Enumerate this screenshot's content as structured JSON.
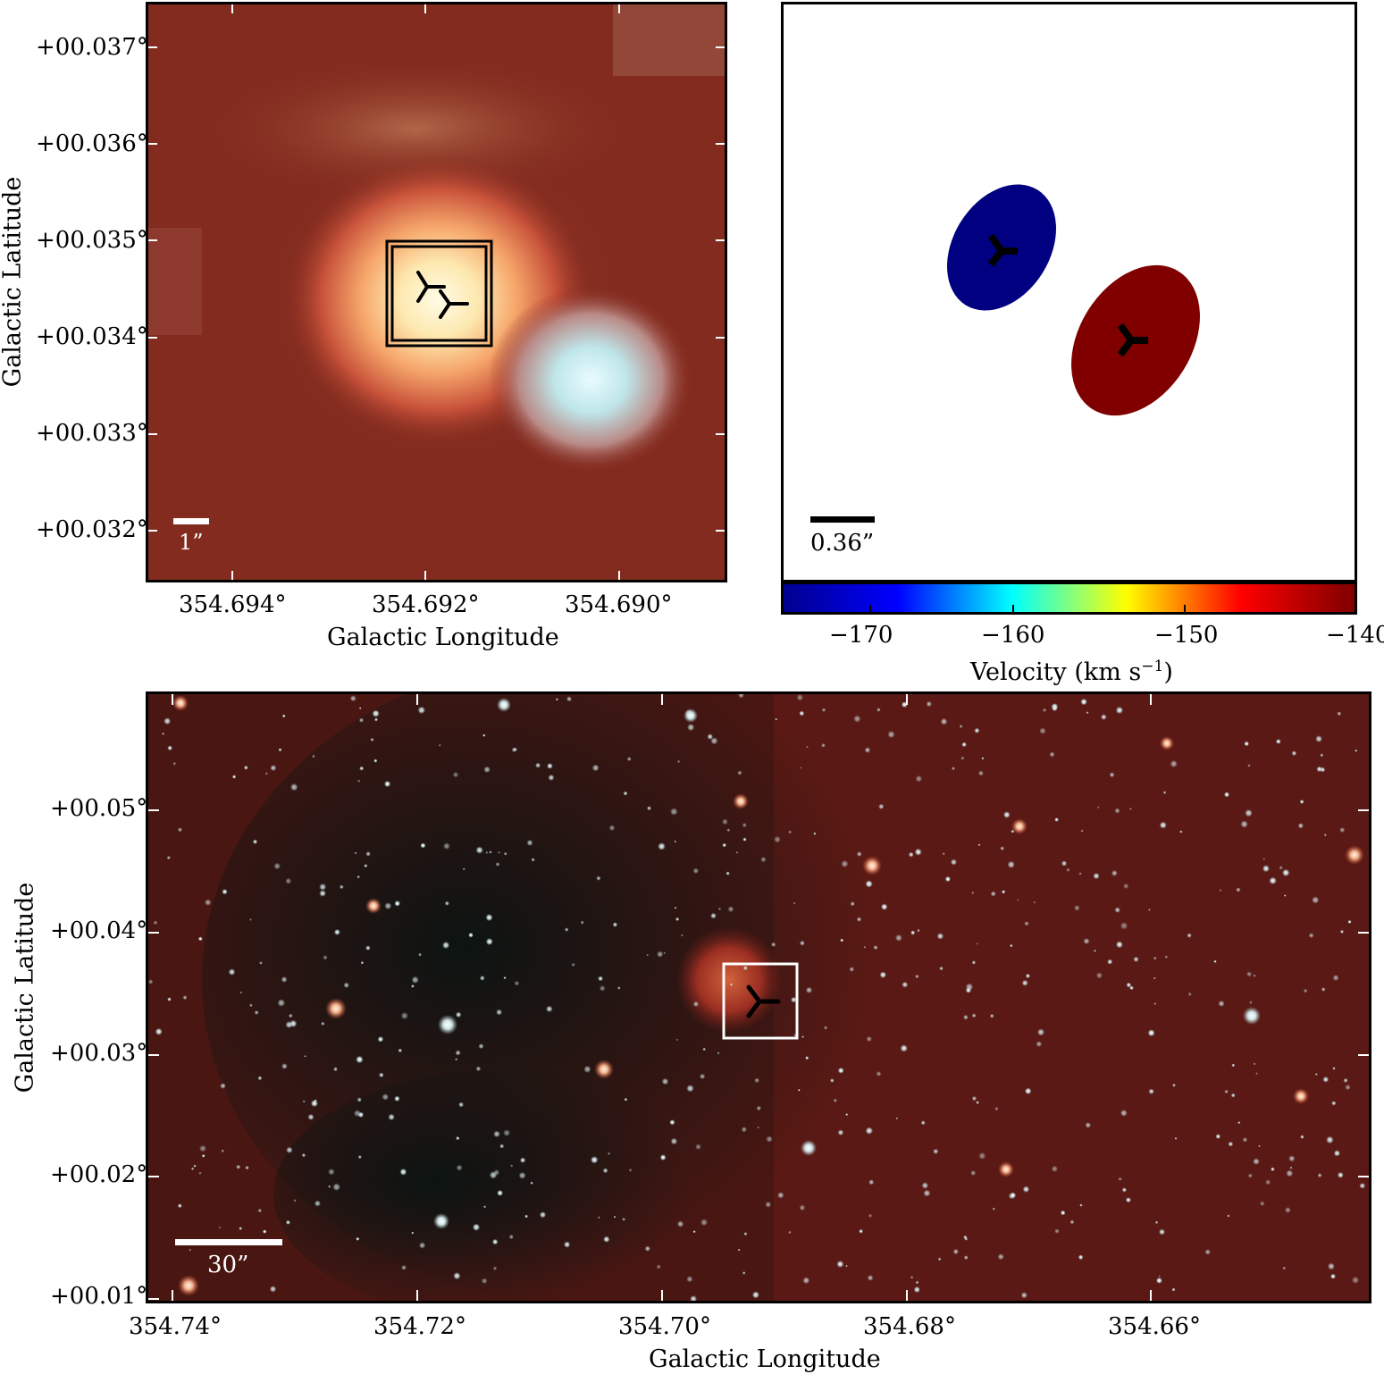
{
  "top_left": {
    "y_ticks": [
      "+00.037°",
      "+00.036°",
      "+00.035°",
      "+00.034°",
      "+00.033°",
      "+00.032°"
    ],
    "x_ticks": [
      "354.694°",
      "354.692°",
      "354.690°"
    ],
    "x_title": "Galactic Longitude",
    "y_title": "Galactic Latitude",
    "scalebar": "1”"
  },
  "top_right": {
    "scalebar": "0.36”",
    "colorbar": {
      "ticks": [
        "−170",
        "−160",
        "−150",
        "−140"
      ],
      "title": "Velocity (km s",
      "title_sup": "−1",
      "title_end": ")",
      "colors": [
        "#00008f",
        "#0000ff",
        "#00ffff",
        "#ffff00",
        "#ff0000",
        "#7f0000"
      ]
    },
    "blobs": [
      {
        "label": "blue-shifted",
        "color": "#000080"
      },
      {
        "label": "red-shifted",
        "color": "#800000"
      }
    ]
  },
  "bottom": {
    "y_ticks": [
      "+00.05°",
      "+00.04°",
      "+00.03°",
      "+00.02°",
      "+00.01°"
    ],
    "x_ticks": [
      "354.74°",
      "354.72°",
      "354.70°",
      "354.68°",
      "354.66°"
    ],
    "x_title": "Galactic Longitude",
    "y_title": "Galactic Latitude",
    "scalebar": "30”"
  }
}
